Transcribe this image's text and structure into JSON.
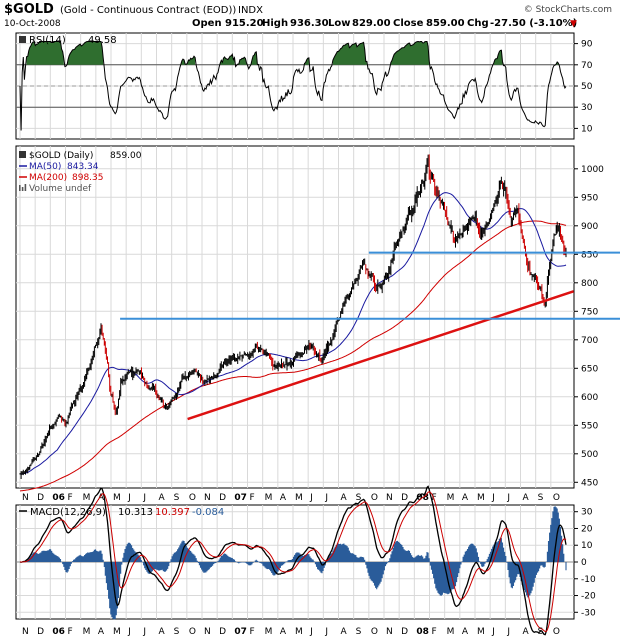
{
  "header": {
    "symbol": "$GOLD",
    "name": "(Gold - Continuous Contract (EOD))",
    "exchange": "INDX",
    "date": "10-Oct-2008",
    "open_label": "Open",
    "open": "915.20",
    "high_label": "High",
    "high": "936.30",
    "low_label": "Low",
    "low": "829.00",
    "close_label": "Close",
    "close": "859.00",
    "chg_label": "Chg",
    "chg": "-27.50 (-3.10%)",
    "chg_arrow": "▼",
    "copyright": "© StockCharts.com"
  },
  "colors": {
    "price": "#000000",
    "ma50": "#1a1aa0",
    "ma200": "#d00000",
    "trendline": "#dd1111",
    "hline": "#3a8fd8",
    "rsi_fill": "#2f6e2f",
    "macd_hist": "#2a5c9a",
    "signal": "#cc0000",
    "grid": "#d9d9d9"
  },
  "chart_data": [
    {
      "type": "line",
      "panel": "rsi",
      "legend": {
        "label": "RSI(14)",
        "value": "49.58"
      },
      "ylim": [
        0,
        100
      ],
      "yticks": [
        10,
        30,
        50,
        70,
        90
      ],
      "reference_lines": [
        70,
        30
      ],
      "last_value": 49.58
    },
    {
      "type": "line",
      "panel": "price",
      "title": "$GOLD (Daily)",
      "legend": [
        {
          "label": "$GOLD (Daily)",
          "value": "859.00"
        },
        {
          "label": "MA(50)",
          "value": "843.34"
        },
        {
          "label": "MA(200)",
          "value": "898.35"
        },
        {
          "label": "Volume undef",
          "value": ""
        }
      ],
      "ylim": [
        440,
        1040
      ],
      "yticks": [
        450,
        500,
        550,
        600,
        650,
        700,
        750,
        800,
        850,
        900,
        950,
        1000
      ],
      "time_range": [
        0,
        36
      ],
      "anchors": [
        [
          0,
          465
        ],
        [
          0.5,
          472
        ],
        [
          1,
          492
        ],
        [
          1.5,
          518
        ],
        [
          2,
          548
        ],
        [
          2.5,
          562
        ],
        [
          3,
          558
        ],
        [
          3.5,
          585
        ],
        [
          4,
          610
        ],
        [
          4.5,
          650
        ],
        [
          5,
          695
        ],
        [
          5.35,
          725
        ],
        [
          5.7,
          670
        ],
        [
          6,
          600
        ],
        [
          6.3,
          570
        ],
        [
          6.7,
          625
        ],
        [
          7.2,
          650
        ],
        [
          7.8,
          640
        ],
        [
          8.5,
          625
        ],
        [
          9.2,
          600
        ],
        [
          9.6,
          580
        ],
        [
          10.2,
          595
        ],
        [
          10.8,
          625
        ],
        [
          11.5,
          640
        ],
        [
          12.2,
          635
        ],
        [
          12.8,
          640
        ],
        [
          13.5,
          660
        ],
        [
          14.2,
          665
        ],
        [
          15,
          675
        ],
        [
          15.6,
          690
        ],
        [
          16.2,
          680
        ],
        [
          16.8,
          655
        ],
        [
          17.5,
          660
        ],
        [
          18.3,
          670
        ],
        [
          19.1,
          680
        ],
        [
          19.8,
          665
        ],
        [
          20.4,
          690
        ],
        [
          21,
          730
        ],
        [
          21.6,
          770
        ],
        [
          22.2,
          800
        ],
        [
          22.6,
          840
        ],
        [
          23,
          815
        ],
        [
          23.6,
          790
        ],
        [
          24.2,
          820
        ],
        [
          24.8,
          870
        ],
        [
          25.3,
          900
        ],
        [
          25.8,
          925
        ],
        [
          26.2,
          950
        ],
        [
          26.6,
          975
        ],
        [
          26.85,
          1010
        ],
        [
          27.1,
          985
        ],
        [
          27.5,
          950
        ],
        [
          27.9,
          935
        ],
        [
          28.3,
          900
        ],
        [
          28.7,
          880
        ],
        [
          29.1,
          885
        ],
        [
          29.5,
          900
        ],
        [
          29.9,
          920
        ],
        [
          30.4,
          890
        ],
        [
          30.9,
          905
        ],
        [
          31.4,
          940
        ],
        [
          31.7,
          975
        ],
        [
          32,
          955
        ],
        [
          32.4,
          900
        ],
        [
          32.8,
          915
        ],
        [
          33.1,
          880
        ],
        [
          33.5,
          830
        ],
        [
          33.9,
          810
        ],
        [
          34.3,
          790
        ],
        [
          34.6,
          760
        ],
        [
          34.9,
          830
        ],
        [
          35.2,
          880
        ],
        [
          35.5,
          900
        ],
        [
          35.7,
          875
        ],
        [
          36,
          859
        ]
      ],
      "ma_lag": {
        "ma50": 2.5,
        "ma200": 10
      },
      "overlays": [
        {
          "kind": "trendline",
          "from": [
            11.05,
            561
          ],
          "to": [
            36.5,
            785
          ]
        },
        {
          "kind": "horizontal",
          "value": 737,
          "from_t": 6.6
        },
        {
          "kind": "horizontal",
          "value": 853,
          "from_t": 23.0
        }
      ],
      "last_value": 859.0
    },
    {
      "type": "line",
      "panel": "macd",
      "legend": {
        "label": "MACD(12,26,9)",
        "macd": "10.313",
        "signal": "10.397",
        "histogram": "-0.084"
      },
      "ylim": [
        -34,
        34
      ],
      "yticks": [
        -30,
        -20,
        -10,
        0,
        10,
        20,
        30
      ],
      "last_value": 10.313
    }
  ],
  "time_axis": {
    "labels": [
      {
        "label": "N",
        "t": 0,
        "year": false
      },
      {
        "label": "D",
        "t": 1,
        "year": false
      },
      {
        "label": "06",
        "t": 2,
        "year": true
      },
      {
        "label": "F",
        "t": 3,
        "year": false
      },
      {
        "label": "M",
        "t": 4,
        "year": false
      },
      {
        "label": "A",
        "t": 5,
        "year": false
      },
      {
        "label": "M",
        "t": 6,
        "year": false
      },
      {
        "label": "J",
        "t": 7,
        "year": false
      },
      {
        "label": "J",
        "t": 8,
        "year": false
      },
      {
        "label": "A",
        "t": 9,
        "year": false
      },
      {
        "label": "S",
        "t": 10,
        "year": false
      },
      {
        "label": "O",
        "t": 11,
        "year": false
      },
      {
        "label": "N",
        "t": 12,
        "year": false
      },
      {
        "label": "D",
        "t": 13,
        "year": false
      },
      {
        "label": "07",
        "t": 14,
        "year": true
      },
      {
        "label": "F",
        "t": 15,
        "year": false
      },
      {
        "label": "M",
        "t": 16,
        "year": false
      },
      {
        "label": "A",
        "t": 17,
        "year": false
      },
      {
        "label": "M",
        "t": 18,
        "year": false
      },
      {
        "label": "J",
        "t": 19,
        "year": false
      },
      {
        "label": "J",
        "t": 20,
        "year": false
      },
      {
        "label": "A",
        "t": 21,
        "year": false
      },
      {
        "label": "S",
        "t": 22,
        "year": false
      },
      {
        "label": "O",
        "t": 23,
        "year": false
      },
      {
        "label": "N",
        "t": 24,
        "year": false
      },
      {
        "label": "D",
        "t": 25,
        "year": false
      },
      {
        "label": "08",
        "t": 26,
        "year": true
      },
      {
        "label": "F",
        "t": 27,
        "year": false
      },
      {
        "label": "M",
        "t": 28,
        "year": false
      },
      {
        "label": "A",
        "t": 29,
        "year": false
      },
      {
        "label": "M",
        "t": 30,
        "year": false
      },
      {
        "label": "J",
        "t": 31,
        "year": false
      },
      {
        "label": "J",
        "t": 32,
        "year": false
      },
      {
        "label": "A",
        "t": 33,
        "year": false
      },
      {
        "label": "S",
        "t": 34,
        "year": false
      },
      {
        "label": "O",
        "t": 35,
        "year": false
      }
    ]
  }
}
